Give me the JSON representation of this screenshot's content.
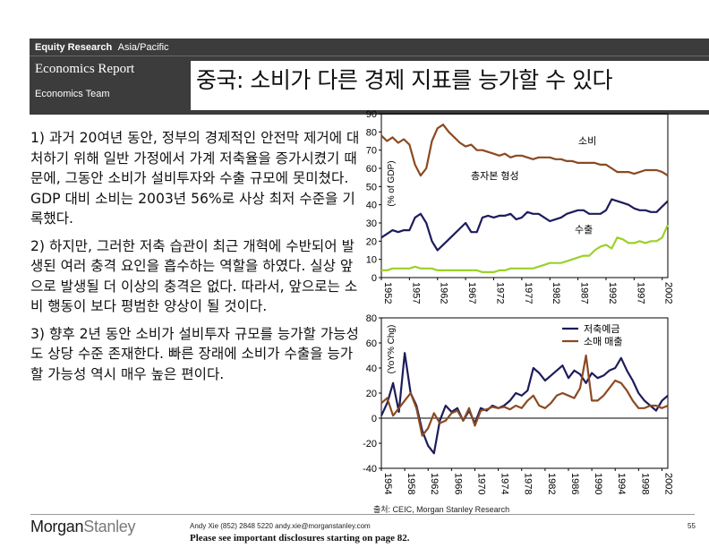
{
  "header": {
    "section_bold": "Equity Research",
    "region": "Asia/Pacific",
    "report_name": "Economics Report",
    "team": "Economics Team",
    "title": "중국: 소비가 다른 경제 지표를 능가할 수 있다"
  },
  "body": {
    "p1_num": "1)",
    "p1_text": "과거 20여년 동안, 정부의 경제적인 안전막 제거에 대처하기 위해 일반 가정에서 가계 저축율을 증가시켰기 때문에, 그동안 소비가 설비투자와 수출 규모에 못미쳤다. GDP 대비 소비는 2003년 56%로 사상 최저 수준을 기록했다.",
    "p2_num": "2)",
    "p2_text": "하지만, 그러한 저축 습관이 최근 개혁에 수반되어 발생된 여러 충격 요인을 흡수하는 역할을 하였다. 실상 앞으로 발생될 더 이상의 충격은 없다. 따라서, 앞으로는 소비 행동이 보다 평범한 양상이 될 것이다.",
    "p3_num": "3)",
    "p3_text": "향후 2년 동안 소비가 설비투자 규모를 능가할 가능성도 상당 수준 존재한다. 빠른 장래에 소비가 수출을 능가할 가능성 역시 매우 높은 편이다."
  },
  "colors": {
    "banner": "#3c3c3c",
    "consumption": "#8b4a22",
    "investment": "#1c1c5c",
    "exports": "#9bd12a",
    "savings": "#1c1c5c",
    "retail": "#8b4a22"
  },
  "chart_data": [
    {
      "type": "line",
      "ylabel": "(% of GDP)",
      "ylim": [
        0,
        90
      ],
      "yticks": [
        "0",
        "10",
        "20",
        "30",
        "40",
        "50",
        "60",
        "70",
        "80",
        "90"
      ],
      "xticks": [
        "1952",
        "1957",
        "1962",
        "1967",
        "1972",
        "1977",
        "1982",
        "1987",
        "1992",
        "1997",
        "2002"
      ],
      "x": [
        1952,
        1953,
        1954,
        1955,
        1956,
        1957,
        1958,
        1959,
        1960,
        1961,
        1962,
        1963,
        1964,
        1965,
        1966,
        1967,
        1968,
        1969,
        1970,
        1971,
        1972,
        1973,
        1974,
        1975,
        1976,
        1977,
        1978,
        1979,
        1980,
        1981,
        1982,
        1983,
        1984,
        1985,
        1986,
        1987,
        1988,
        1989,
        1990,
        1991,
        1992,
        1993,
        1994,
        1995,
        1996,
        1997,
        1998,
        1999,
        2000,
        2001,
        2002,
        2003
      ],
      "series": [
        {
          "name": "소비",
          "values": [
            78,
            75,
            77,
            74,
            76,
            73,
            62,
            56,
            60,
            75,
            82,
            84,
            80,
            77,
            74,
            72,
            73,
            70,
            70,
            69,
            68,
            67,
            68,
            66,
            67,
            67,
            66,
            65,
            66,
            66,
            66,
            65,
            65,
            64,
            64,
            63,
            63,
            63,
            63,
            62,
            62,
            60,
            58,
            58,
            58,
            57,
            58,
            59,
            59,
            59,
            58,
            56
          ]
        },
        {
          "name": "총자본 형성",
          "values": [
            22,
            24,
            26,
            25,
            26,
            26,
            33,
            35,
            30,
            20,
            15,
            18,
            21,
            24,
            27,
            30,
            25,
            25,
            33,
            34,
            33,
            34,
            34,
            35,
            32,
            33,
            36,
            35,
            35,
            33,
            31,
            32,
            33,
            35,
            36,
            37,
            37,
            35,
            35,
            35,
            37,
            43,
            42,
            41,
            40,
            38,
            37,
            37,
            36,
            36,
            39,
            42
          ]
        },
        {
          "name": "수출",
          "values": [
            4,
            4,
            5,
            5,
            5,
            5,
            6,
            5,
            5,
            5,
            4,
            4,
            4,
            4,
            4,
            4,
            4,
            4,
            3,
            3,
            3,
            4,
            4,
            5,
            5,
            5,
            5,
            5,
            6,
            7,
            8,
            8,
            8,
            9,
            10,
            11,
            12,
            12,
            15,
            17,
            18,
            16,
            22,
            21,
            19,
            19,
            20,
            19,
            20,
            20,
            22,
            29
          ]
        }
      ]
    },
    {
      "type": "line",
      "ylabel": "(YoY% Chg)",
      "ylim": [
        -40,
        80
      ],
      "yticks": [
        "-40",
        "-20",
        "0",
        "20",
        "40",
        "60",
        "80"
      ],
      "xticks": [
        "1954",
        "1958",
        "1962",
        "1966",
        "1970",
        "1974",
        "1978",
        "1982",
        "1986",
        "1990",
        "1994",
        "1998",
        "2002"
      ],
      "x": [
        1954,
        1955,
        1956,
        1957,
        1958,
        1959,
        1960,
        1961,
        1962,
        1963,
        1964,
        1965,
        1966,
        1967,
        1968,
        1969,
        1970,
        1971,
        1972,
        1973,
        1974,
        1975,
        1976,
        1977,
        1978,
        1979,
        1980,
        1981,
        1982,
        1983,
        1984,
        1985,
        1986,
        1987,
        1988,
        1989,
        1990,
        1991,
        1992,
        1993,
        1994,
        1995,
        1996,
        1997,
        1998,
        1999,
        2000,
        2001,
        2002,
        2003
      ],
      "series": [
        {
          "name": "저축예금",
          "values": [
            2,
            12,
            28,
            5,
            52,
            20,
            10,
            -10,
            -22,
            -28,
            -2,
            10,
            5,
            8,
            -2,
            6,
            -4,
            8,
            6,
            10,
            8,
            10,
            14,
            20,
            18,
            22,
            40,
            36,
            30,
            34,
            38,
            42,
            32,
            38,
            35,
            28,
            36,
            32,
            34,
            38,
            40,
            48,
            38,
            30,
            20,
            14,
            10,
            6,
            14,
            18
          ]
        },
        {
          "name": "소매 매출",
          "values": [
            12,
            16,
            2,
            8,
            14,
            20,
            8,
            -14,
            -8,
            4,
            -4,
            -2,
            4,
            6,
            -2,
            8,
            -6,
            6,
            7,
            9,
            8,
            9,
            7,
            10,
            8,
            14,
            18,
            10,
            8,
            12,
            18,
            20,
            18,
            16,
            24,
            50,
            14,
            14,
            18,
            24,
            30,
            28,
            22,
            14,
            8,
            8,
            10,
            10,
            8,
            10
          ]
        }
      ]
    }
  ],
  "footer": {
    "source": "출처: CEIC, Morgan Stanley Research",
    "logo_a": "Morgan",
    "logo_b": "Stanley",
    "author": "Andy Xie (852) 2848 5220  andy.xie@morganstanley.com",
    "disclosure": "Please see important disclosures starting on page 82.",
    "page": "55"
  }
}
